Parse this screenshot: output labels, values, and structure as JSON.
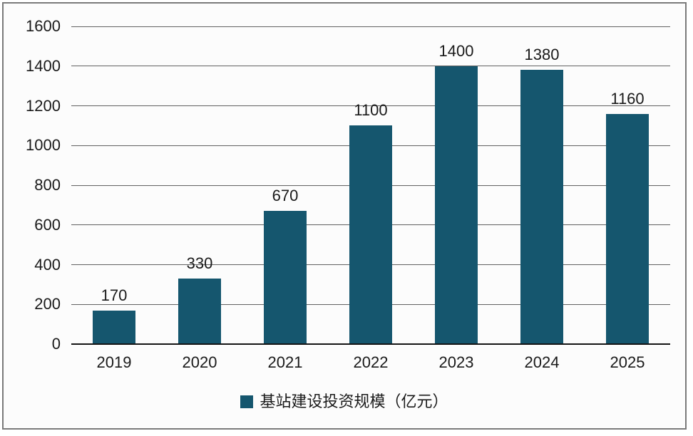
{
  "chart_data": {
    "type": "bar",
    "title": "",
    "xlabel": "",
    "ylabel": "",
    "categories": [
      "2019",
      "2020",
      "2021",
      "2022",
      "2023",
      "2024",
      "2025"
    ],
    "series": [
      {
        "name": "基站建设投资规模（亿元）",
        "values": [
          170,
          330,
          670,
          1100,
          1400,
          1380,
          1160
        ],
        "data_labels": [
          "170",
          "330",
          "670",
          "1100",
          "1400",
          "1380",
          "1160"
        ]
      }
    ],
    "ylim": [
      0,
      1600
    ],
    "yticks": [
      0,
      200,
      400,
      600,
      800,
      1000,
      1200,
      1400,
      1600
    ],
    "ytick_labels": [
      "0",
      "200",
      "400",
      "600",
      "800",
      "1000",
      "1200",
      "1400",
      "1600"
    ],
    "grid": true,
    "legend_position": "bottom",
    "bar_color": "#15566E",
    "grid_color": "#616161",
    "axis_color": "#141414",
    "frame_border_color": "#7a7a7a"
  },
  "legend": {
    "label": "基站建设投资规模（亿元）",
    "swatch_color": "#15566E"
  }
}
